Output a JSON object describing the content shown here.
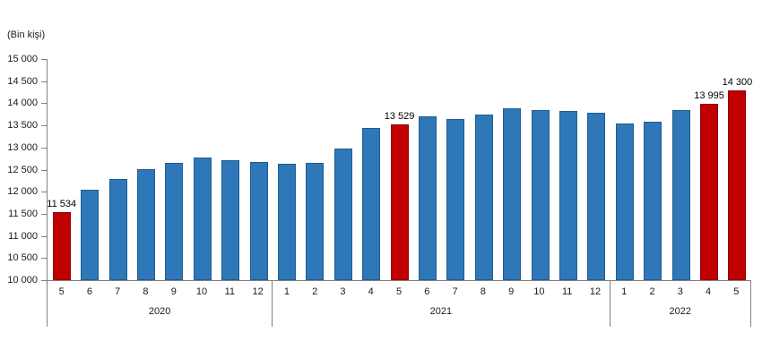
{
  "chart_data": {
    "type": "bar",
    "title": "(Bin kişi)",
    "ylabel": "(Bin kişi)",
    "xlabel": "",
    "ylim": [
      10000,
      15000
    ],
    "ytick_step": 500,
    "grid": false,
    "legend": "none",
    "yticks": [
      {
        "value": 15000,
        "label": "15 000"
      },
      {
        "value": 14500,
        "label": "14 500"
      },
      {
        "value": 14000,
        "label": "14 000"
      },
      {
        "value": 13500,
        "label": "13 500"
      },
      {
        "value": 13000,
        "label": "13 000"
      },
      {
        "value": 12500,
        "label": "12 500"
      },
      {
        "value": 12000,
        "label": "12 000"
      },
      {
        "value": 11500,
        "label": "11 500"
      },
      {
        "value": 11000,
        "label": "11 000"
      },
      {
        "value": 10500,
        "label": "10 500"
      },
      {
        "value": 10000,
        "label": "10 000"
      }
    ],
    "colors": {
      "bar_default": "#2E78BA",
      "bar_highlight": "#C00000",
      "axis_line": "#808080",
      "text": "#1a1a1a"
    },
    "groups": [
      {
        "year": "2020",
        "points": [
          {
            "month": "5",
            "value": 11534,
            "highlight": true,
            "label": "11 534"
          },
          {
            "month": "6",
            "value": 12050,
            "highlight": false,
            "label": ""
          },
          {
            "month": "7",
            "value": 12290,
            "highlight": false,
            "label": ""
          },
          {
            "month": "8",
            "value": 12520,
            "highlight": false,
            "label": ""
          },
          {
            "month": "9",
            "value": 12660,
            "highlight": false,
            "label": ""
          },
          {
            "month": "10",
            "value": 12770,
            "highlight": false,
            "label": ""
          },
          {
            "month": "11",
            "value": 12710,
            "highlight": false,
            "label": ""
          },
          {
            "month": "12",
            "value": 12680,
            "highlight": false,
            "label": ""
          }
        ]
      },
      {
        "year": "2021",
        "points": [
          {
            "month": "1",
            "value": 12640,
            "highlight": false,
            "label": ""
          },
          {
            "month": "2",
            "value": 12660,
            "highlight": false,
            "label": ""
          },
          {
            "month": "3",
            "value": 12980,
            "highlight": false,
            "label": ""
          },
          {
            "month": "4",
            "value": 13440,
            "highlight": false,
            "label": ""
          },
          {
            "month": "5",
            "value": 13529,
            "highlight": true,
            "label": "13 529"
          },
          {
            "month": "6",
            "value": 13710,
            "highlight": false,
            "label": ""
          },
          {
            "month": "7",
            "value": 13650,
            "highlight": false,
            "label": ""
          },
          {
            "month": "8",
            "value": 13750,
            "highlight": false,
            "label": ""
          },
          {
            "month": "9",
            "value": 13890,
            "highlight": false,
            "label": ""
          },
          {
            "month": "10",
            "value": 13845,
            "highlight": false,
            "label": ""
          },
          {
            "month": "11",
            "value": 13835,
            "highlight": false,
            "label": ""
          },
          {
            "month": "12",
            "value": 13780,
            "highlight": false,
            "label": ""
          }
        ]
      },
      {
        "year": "2022",
        "points": [
          {
            "month": "1",
            "value": 13550,
            "highlight": false,
            "label": ""
          },
          {
            "month": "2",
            "value": 13590,
            "highlight": false,
            "label": ""
          },
          {
            "month": "3",
            "value": 13850,
            "highlight": false,
            "label": ""
          },
          {
            "month": "4",
            "value": 13995,
            "highlight": true,
            "label": "13 995"
          },
          {
            "month": "5",
            "value": 14300,
            "highlight": true,
            "label": "14 300"
          }
        ]
      }
    ]
  }
}
